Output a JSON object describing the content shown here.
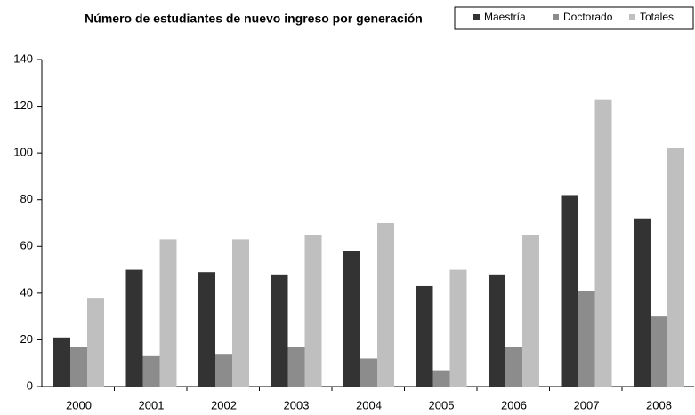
{
  "chart_data": {
    "type": "bar",
    "title": "Número de estudiantes de nuevo ingreso por generación",
    "categories": [
      "2000",
      "2001",
      "2002",
      "2003",
      "2004",
      "2005",
      "2006",
      "2007",
      "2008"
    ],
    "series": [
      {
        "name": "Maestría",
        "color": "#333333",
        "values": [
          21,
          50,
          49,
          48,
          58,
          43,
          48,
          82,
          72
        ]
      },
      {
        "name": "Doctorado",
        "color": "#8c8c8c",
        "values": [
          17,
          13,
          14,
          17,
          12,
          7,
          17,
          41,
          30
        ]
      },
      {
        "name": "Totales",
        "color": "#bfbfbf",
        "values": [
          38,
          63,
          63,
          65,
          70,
          50,
          65,
          123,
          102
        ]
      }
    ],
    "ylim": [
      0,
      140
    ],
    "yticks": [
      0,
      20,
      40,
      60,
      80,
      100,
      120,
      140
    ],
    "grid": false,
    "legend": "top-right"
  }
}
